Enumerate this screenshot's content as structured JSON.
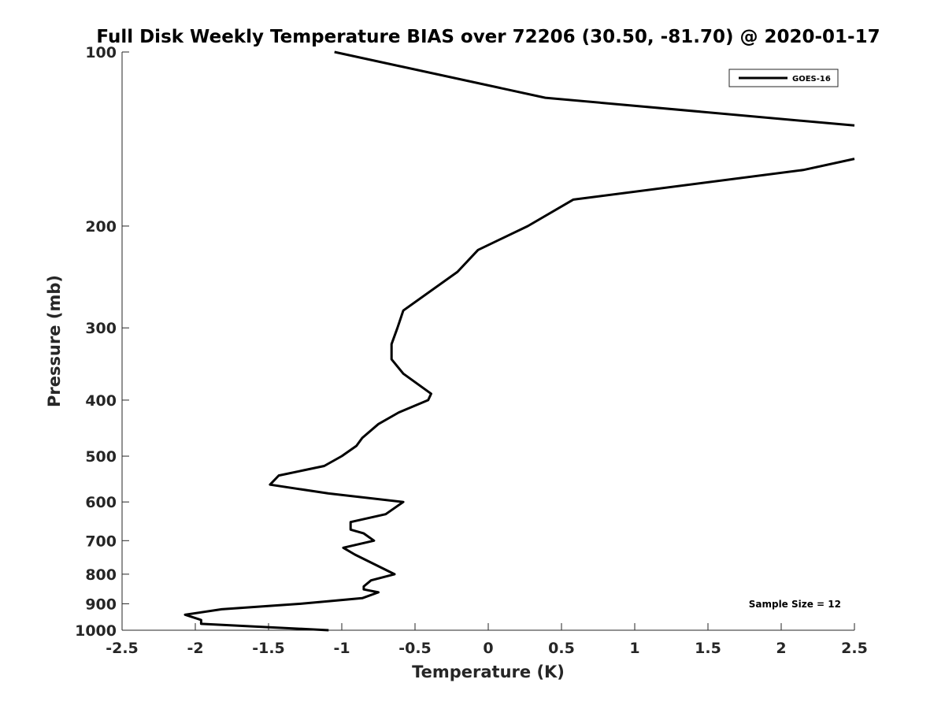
{
  "chart_data": {
    "type": "line",
    "title": "Full Disk Weekly Temperature BIAS over 72206 (30.50, -81.70) @ 2020-01-17",
    "xlabel": "Temperature (K)",
    "ylabel": "Pressure (mb)",
    "xlim": [
      -2.5,
      2.5
    ],
    "ylim": [
      1000,
      100
    ],
    "y_scale": "log",
    "y_reversed": true,
    "grid": false,
    "legend_position": "top-right",
    "x_ticks": [
      "-2.5",
      "-2",
      "-1.5",
      "-1",
      "-0.5",
      "0",
      "0.5",
      "1",
      "1.5",
      "2",
      "2.5"
    ],
    "y_ticks": [
      "100",
      "200",
      "300",
      "400",
      "500",
      "600",
      "700",
      "800",
      "900",
      "1000"
    ],
    "annotation": "Sample Size = 12",
    "line_color": "#000000",
    "series": [
      {
        "name": "GOES-16",
        "segments": [
          [
            {
              "x": -1.05,
              "y": 100
            },
            {
              "x": 0.39,
              "y": 120
            },
            {
              "x": 2.5,
              "y": 134
            }
          ],
          [
            {
              "x": 2.5,
              "y": 153
            },
            {
              "x": 2.15,
              "y": 160
            },
            {
              "x": 0.58,
              "y": 180
            },
            {
              "x": 0.27,
              "y": 200
            },
            {
              "x": -0.07,
              "y": 220
            },
            {
              "x": -0.21,
              "y": 240
            },
            {
              "x": -0.58,
              "y": 280
            },
            {
              "x": -0.62,
              "y": 300
            },
            {
              "x": -0.66,
              "y": 320
            },
            {
              "x": -0.66,
              "y": 340
            },
            {
              "x": -0.58,
              "y": 360
            },
            {
              "x": -0.39,
              "y": 390
            },
            {
              "x": -0.41,
              "y": 400
            },
            {
              "x": -0.61,
              "y": 420
            },
            {
              "x": -0.75,
              "y": 440
            },
            {
              "x": -0.86,
              "y": 465
            },
            {
              "x": -0.9,
              "y": 480
            },
            {
              "x": -1.0,
              "y": 500
            },
            {
              "x": -1.12,
              "y": 520
            },
            {
              "x": -1.43,
              "y": 540
            },
            {
              "x": -1.49,
              "y": 560
            },
            {
              "x": -1.09,
              "y": 580
            },
            {
              "x": -0.58,
              "y": 600
            },
            {
              "x": -0.7,
              "y": 630
            },
            {
              "x": -0.94,
              "y": 650
            },
            {
              "x": -0.94,
              "y": 670
            },
            {
              "x": -0.85,
              "y": 680
            },
            {
              "x": -0.78,
              "y": 700
            },
            {
              "x": -0.99,
              "y": 720
            },
            {
              "x": -0.91,
              "y": 740
            },
            {
              "x": -0.64,
              "y": 800
            },
            {
              "x": -0.8,
              "y": 820
            },
            {
              "x": -0.85,
              "y": 840
            },
            {
              "x": -0.85,
              "y": 850
            },
            {
              "x": -0.75,
              "y": 860
            },
            {
              "x": -0.86,
              "y": 880
            },
            {
              "x": -1.28,
              "y": 900
            },
            {
              "x": -1.82,
              "y": 920
            },
            {
              "x": -2.07,
              "y": 940
            },
            {
              "x": -1.96,
              "y": 960
            },
            {
              "x": -1.96,
              "y": 975
            },
            {
              "x": -1.09,
              "y": 1000
            }
          ]
        ]
      }
    ]
  }
}
